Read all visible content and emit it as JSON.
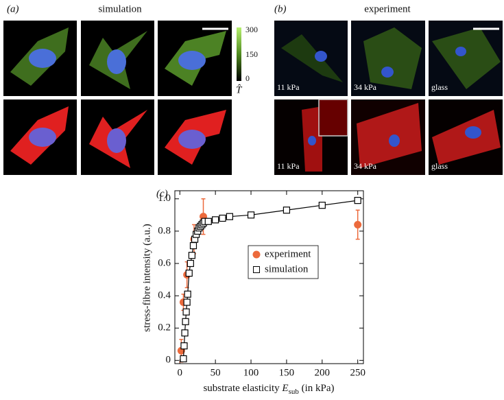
{
  "panel_a": {
    "label": "(a)",
    "title": "simulation",
    "colorbar_ticks": [
      300,
      150,
      0
    ],
    "colorbar_label": "T̂"
  },
  "panel_b": {
    "label": "(b)",
    "title": "experiment",
    "image_labels": [
      "11 kPa",
      "34 kPa",
      "glass",
      "11 kPa",
      "34 kPa",
      "glass"
    ]
  },
  "chart_data": {
    "type": "scatter",
    "panel_label": "(c)",
    "ylabel": "stress-fibre intensity (a.u.)",
    "xlabel": {
      "text": "substrate elasticity",
      "var": "E",
      "sub": "sub",
      "unit": "(in kPa)"
    },
    "xlim": [
      -7,
      258
    ],
    "ylim": [
      -0.02,
      1.05
    ],
    "xticks": [
      0,
      50,
      100,
      150,
      200,
      250
    ],
    "yticks": [
      0,
      0.2,
      0.4,
      0.6,
      0.8,
      {
        "value": 1,
        "label": "1.0"
      }
    ],
    "legend": "center right",
    "series": [
      {
        "name": "experiment",
        "color": "#ec6a3c",
        "marker": "circle",
        "line": false,
        "x": [
          2,
          5,
          10,
          20,
          33,
          250
        ],
        "values": [
          0.06,
          0.36,
          0.53,
          0.75,
          0.89,
          0.84
        ],
        "errors": [
          0.07,
          0.05,
          0.08,
          0.09,
          0.11,
          0.09
        ]
      },
      {
        "name": "simulation",
        "color": "#000000",
        "marker": "square",
        "line": true,
        "x": [
          5,
          6,
          7,
          8,
          9,
          10,
          11,
          13,
          15,
          17,
          19,
          21,
          23,
          25,
          27,
          29,
          31,
          33,
          35,
          40,
          50,
          60,
          70,
          100,
          150,
          200,
          250
        ],
        "values": [
          0.01,
          0.09,
          0.17,
          0.24,
          0.3,
          0.36,
          0.41,
          0.54,
          0.6,
          0.65,
          0.71,
          0.75,
          0.78,
          0.8,
          0.82,
          0.83,
          0.84,
          0.85,
          0.86,
          0.86,
          0.87,
          0.88,
          0.89,
          0.9,
          0.93,
          0.96,
          0.99
        ]
      }
    ]
  }
}
